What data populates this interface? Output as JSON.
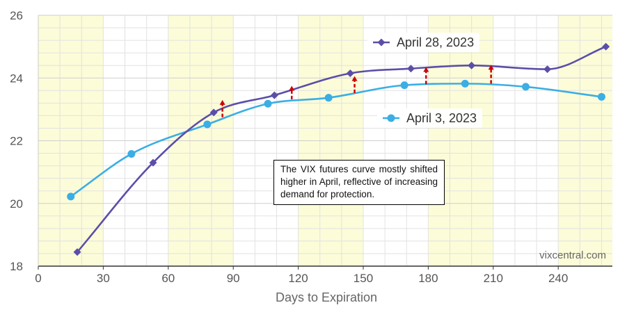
{
  "chart_data": {
    "type": "line",
    "title": "",
    "xlabel": "Days to Expiration",
    "ylabel": "",
    "xlim": [
      0,
      265
    ],
    "ylim": [
      18,
      26
    ],
    "x_ticks": [
      0,
      30,
      60,
      90,
      120,
      150,
      180,
      210,
      240
    ],
    "y_ticks": [
      18,
      20,
      22,
      24,
      26
    ],
    "grid": true,
    "shaded_bands_x": [
      [
        0,
        30
      ],
      [
        60,
        90
      ],
      [
        120,
        150
      ],
      [
        180,
        210
      ],
      [
        240,
        265
      ]
    ],
    "band_color": "#fcfcd8",
    "series": [
      {
        "name": "April 28, 2023",
        "color": "#5b4ea8",
        "marker": "diamond",
        "x": [
          18,
          53,
          81,
          109,
          144,
          172,
          200,
          235,
          262
        ],
        "y": [
          18.45,
          21.3,
          22.9,
          23.45,
          24.15,
          24.3,
          24.4,
          24.28,
          25.0
        ]
      },
      {
        "name": "April 3, 2023",
        "color": "#3aaee5",
        "marker": "circle",
        "x": [
          15,
          43,
          78,
          106,
          134,
          169,
          197,
          225,
          260
        ],
        "y": [
          20.22,
          21.58,
          22.52,
          23.18,
          23.37,
          23.77,
          23.82,
          23.72,
          23.4
        ]
      }
    ],
    "arrows": [
      {
        "x": 85,
        "from": 22.75,
        "to": 23.3
      },
      {
        "x": 117,
        "from": 23.32,
        "to": 23.75
      },
      {
        "x": 146,
        "from": 23.52,
        "to": 24.06
      },
      {
        "x": 179,
        "from": 23.8,
        "to": 24.35
      },
      {
        "x": 209,
        "from": 23.82,
        "to": 24.42
      }
    ],
    "arrow_color": "#cc0000",
    "annotation": "The VIX futures curve mostly shifted higher in April, reflective of increasing demand for protection.",
    "credit": "vixcentral.com"
  }
}
